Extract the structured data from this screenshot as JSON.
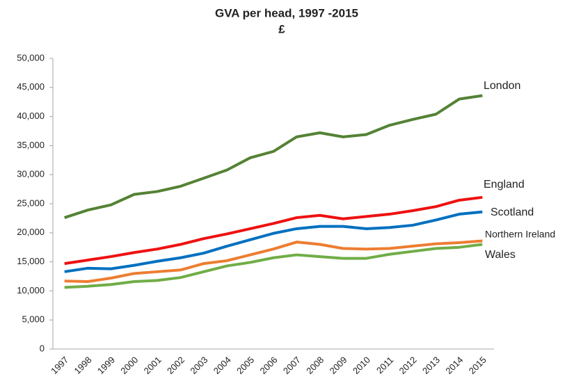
{
  "chart_data": {
    "type": "line",
    "title": "GVA per head, 1997 -2015",
    "subtitle": "£",
    "categories": [
      "1997",
      "1998",
      "1999",
      "2000",
      "2001",
      "2002",
      "2003",
      "2004",
      "2005",
      "2006",
      "2007",
      "2008",
      "2009",
      "2010",
      "2011",
      "2012",
      "2013",
      "2014",
      "2015"
    ],
    "series": [
      {
        "name": "London",
        "color": "#548235",
        "values": [
          22600,
          23900,
          24800,
          26600,
          27100,
          28000,
          29400,
          30800,
          32900,
          34000,
          36500,
          37200,
          36500,
          36900,
          38500,
          39500,
          40400,
          43000,
          43600
        ]
      },
      {
        "name": "England",
        "color": "#ee1111",
        "values": [
          14700,
          15300,
          15900,
          16600,
          17200,
          18000,
          19000,
          19800,
          20700,
          21600,
          22600,
          23000,
          22400,
          22800,
          23200,
          23800,
          24500,
          25600,
          26100
        ]
      },
      {
        "name": "Scotland",
        "color": "#0070c0",
        "values": [
          13300,
          13900,
          13800,
          14400,
          15100,
          15700,
          16500,
          17700,
          18800,
          19900,
          20700,
          21100,
          21100,
          20700,
          20900,
          21300,
          22200,
          23200,
          23600
        ]
      },
      {
        "name": "Northern Ireland",
        "color": "#ed7d31",
        "values": [
          11700,
          11600,
          12200,
          13000,
          13300,
          13600,
          14700,
          15200,
          16200,
          17200,
          18400,
          18000,
          17300,
          17200,
          17300,
          17700,
          18100,
          18300,
          18600
        ]
      },
      {
        "name": "Wales",
        "color": "#70ad47",
        "values": [
          10600,
          10800,
          11100,
          11600,
          11800,
          12300,
          13300,
          14300,
          14900,
          15700,
          16200,
          15900,
          15600,
          15600,
          16300,
          16800,
          17300,
          17500,
          18000
        ]
      }
    ],
    "ylim": [
      0,
      50000
    ],
    "yticks": [
      0,
      {
        "value": 5000,
        "label": "5,000"
      },
      {
        "value": 10000,
        "label": "10,000"
      },
      {
        "value": 15000,
        "label": "15,000"
      },
      {
        "value": 20000,
        "label": "20,000"
      },
      {
        "value": 25000,
        "label": "25,000"
      },
      {
        "value": 30000,
        "label": "30,000"
      },
      {
        "value": 35000,
        "label": "35,000"
      },
      {
        "value": 40000,
        "label": "40,000"
      },
      {
        "value": 45000,
        "label": "45,000"
      },
      {
        "value": 50000,
        "label": "50,000"
      }
    ],
    "grid": false
  }
}
